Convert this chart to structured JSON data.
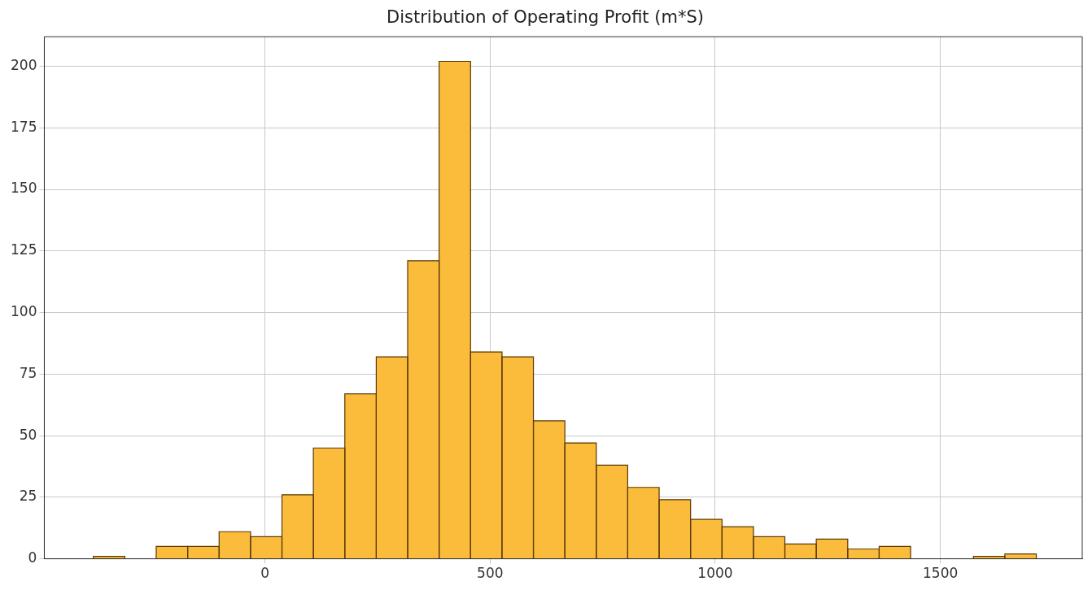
{
  "chart_data": {
    "type": "histogram",
    "title": "Distribution of Operating Profit (m*S)",
    "bins": [
      -381,
      -311.2,
      -241.4,
      -171.6,
      -101.8,
      -32,
      37.8,
      107.6,
      177.4,
      247.2,
      317,
      386.8,
      456.6,
      526.4,
      596.2,
      666,
      735.8,
      805.6,
      875.4,
      945.2,
      1015,
      1084.8,
      1154.6,
      1224.4,
      1294.2,
      1364,
      1433.8,
      1503.6,
      1573.4,
      1643.2,
      1713
    ],
    "values": [
      1,
      0,
      5,
      5,
      11,
      9,
      26,
      45,
      67,
      82,
      121,
      202,
      84,
      82,
      56,
      47,
      38,
      29,
      24,
      16,
      13,
      9,
      6,
      8,
      4,
      5,
      0,
      0,
      1,
      2
    ],
    "color": "#fbbc3c",
    "xlim": [
      -490,
      1815
    ],
    "xticks": [
      0,
      500,
      1000,
      1500
    ],
    "ylim": [
      0,
      212
    ],
    "yticks": [
      0,
      25,
      50,
      75,
      100,
      125,
      150,
      175,
      200
    ],
    "grid": true
  }
}
